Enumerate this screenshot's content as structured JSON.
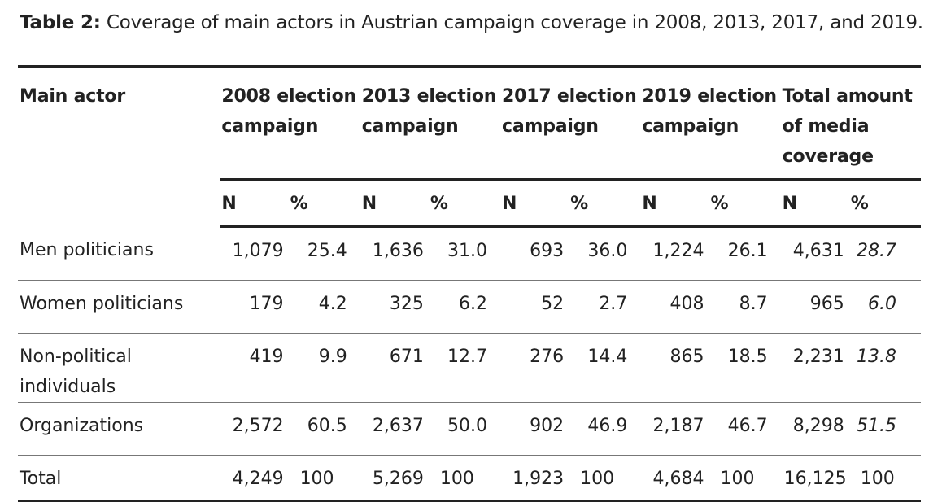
{
  "caption": {
    "label": "Table 2:",
    "text": " Coverage of main actors in Austrian campaign coverage in 2008, 2013, 2017, and 2019."
  },
  "table": {
    "first_header": "Main actor",
    "period_headers": [
      "2008 election campaign",
      "2013 election campaign",
      "2017 election campaign",
      "2019 election campaign",
      "Total amount of media coverage"
    ],
    "sub_headers": {
      "n": "N",
      "pct": "%"
    },
    "rows": [
      {
        "actor": "Men politicians",
        "values": [
          "1,079",
          "25.4",
          "1,636",
          "31.0",
          "693",
          "36.0",
          "1,224",
          "26.1",
          "4,631",
          "28.7"
        ]
      },
      {
        "actor": "Women politicians",
        "values": [
          "179",
          "4.2",
          "325",
          "6.2",
          "52",
          "2.7",
          "408",
          "8.7",
          "965",
          "6.0"
        ]
      },
      {
        "actor": "Non-political individuals",
        "values": [
          "419",
          "9.9",
          "671",
          "12.7",
          "276",
          "14.4",
          "865",
          "18.5",
          "2,231",
          "13.8"
        ]
      },
      {
        "actor": "Organizations",
        "values": [
          "2,572",
          "60.5",
          "2,637",
          "50.0",
          "902",
          "46.9",
          "2,187",
          "46.7",
          "8,298",
          "51.5"
        ]
      }
    ],
    "total_row": {
      "actor": "Total",
      "values": [
        "4,249",
        "100",
        "5,269",
        "100",
        "1,923",
        "100",
        "4,684",
        "100",
        "16,125",
        "100"
      ]
    }
  }
}
